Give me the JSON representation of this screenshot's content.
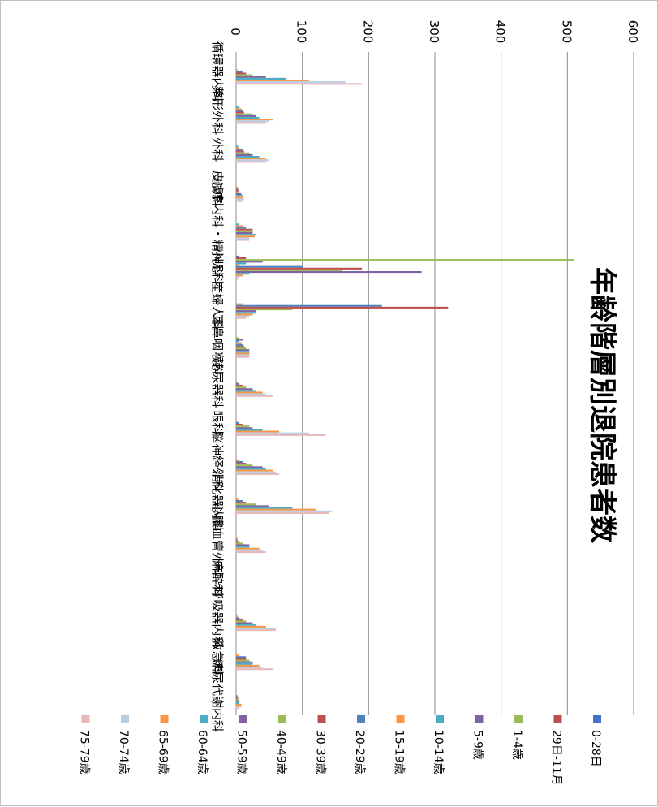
{
  "chart_data": {
    "type": "bar",
    "orientation": "horizontal",
    "title": "年齢階層別退院患者数",
    "xlim": [
      0,
      600
    ],
    "x_ticks": [
      "0",
      "100",
      "200",
      "300",
      "400",
      "500",
      "600"
    ],
    "grid": true,
    "legend_position": "bottom",
    "categories": [
      "循環器内科",
      "整形外科",
      "外科",
      "皮膚科",
      "心療内科・精神科",
      "小児科",
      "産婦人科",
      "耳鼻咽喉科",
      "泌尿器科",
      "眼科",
      "脳神経外科",
      "消化器内科",
      "心臓血管外科",
      "麻酔科",
      "呼吸器内科",
      "救急科",
      "糖尿代謝内科"
    ],
    "series": [
      {
        "name": "0-28日",
        "color": "#4472C4",
        "values": [
          0,
          0,
          0,
          0,
          0,
          5,
          0,
          0,
          0,
          0,
          0,
          0,
          0,
          0,
          0,
          0,
          0
        ]
      },
      {
        "name": "29日-11月",
        "color": "#C0504D",
        "values": [
          0,
          0,
          0,
          0,
          0,
          15,
          0,
          0,
          0,
          0,
          0,
          0,
          0,
          0,
          0,
          0,
          0
        ]
      },
      {
        "name": "1-4歳",
        "color": "#9BBB59",
        "values": [
          0,
          0,
          0,
          0,
          0,
          510,
          0,
          5,
          0,
          0,
          0,
          0,
          0,
          0,
          0,
          0,
          0
        ]
      },
      {
        "name": "5-9歳",
        "color": "#8064A2",
        "values": [
          0,
          0,
          0,
          0,
          0,
          40,
          0,
          10,
          0,
          0,
          0,
          0,
          0,
          0,
          0,
          0,
          0
        ]
      },
      {
        "name": "10-14歳",
        "color": "#4BACC6",
        "values": [
          0,
          5,
          3,
          0,
          5,
          15,
          0,
          5,
          0,
          0,
          0,
          0,
          0,
          0,
          0,
          0,
          0
        ]
      },
      {
        "name": "15-19歳",
        "color": "#F79646",
        "values": [
          2,
          8,
          5,
          2,
          10,
          5,
          10,
          8,
          2,
          2,
          5,
          3,
          2,
          0,
          2,
          5,
          0
        ]
      },
      {
        "name": "20-29歳",
        "color": "#4F81BD",
        "values": [
          10,
          10,
          10,
          3,
          15,
          100,
          220,
          10,
          5,
          5,
          10,
          10,
          2,
          0,
          5,
          15,
          2
        ]
      },
      {
        "name": "30-39歳",
        "color": "#C0504D",
        "values": [
          15,
          12,
          12,
          5,
          25,
          190,
          320,
          12,
          10,
          10,
          15,
          15,
          5,
          0,
          10,
          15,
          3
        ]
      },
      {
        "name": "40-49歳",
        "color": "#9BBB59",
        "values": [
          25,
          25,
          20,
          5,
          25,
          160,
          85,
          15,
          15,
          20,
          25,
          30,
          10,
          0,
          15,
          20,
          5
        ]
      },
      {
        "name": "50-59歳",
        "color": "#8064A2",
        "values": [
          45,
          30,
          25,
          8,
          25,
          280,
          30,
          20,
          25,
          25,
          40,
          50,
          20,
          0,
          25,
          25,
          5
        ]
      },
      {
        "name": "60-64歳",
        "color": "#4BACC6",
        "values": [
          75,
          35,
          35,
          10,
          30,
          20,
          30,
          20,
          30,
          40,
          45,
          85,
          20,
          0,
          30,
          25,
          5
        ]
      },
      {
        "name": "65-69歳",
        "color": "#F79646",
        "values": [
          110,
          55,
          45,
          10,
          28,
          10,
          25,
          20,
          40,
          65,
          55,
          120,
          35,
          0,
          45,
          35,
          8
        ]
      },
      {
        "name": "70-74歳",
        "color": "#B9CDE5",
        "values": [
          165,
          50,
          50,
          12,
          20,
          5,
          20,
          20,
          45,
          110,
          60,
          145,
          40,
          0,
          60,
          40,
          8
        ]
      },
      {
        "name": "75-79歳",
        "color": "#E6B9B8",
        "values": [
          190,
          45,
          45,
          10,
          20,
          3,
          15,
          20,
          55,
          135,
          65,
          140,
          45,
          0,
          60,
          55,
          5
        ]
      }
    ]
  }
}
